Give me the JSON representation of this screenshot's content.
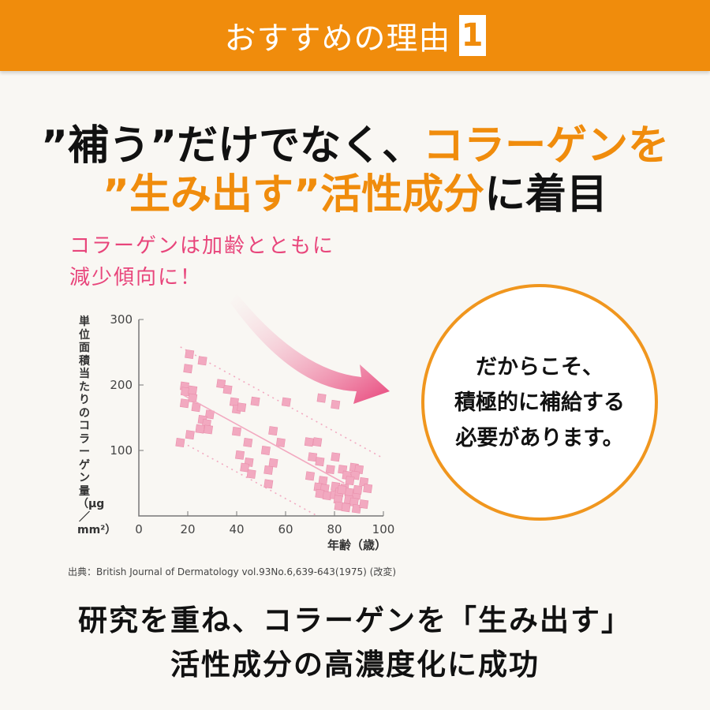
{
  "header": {
    "title": "おすすめの理由",
    "number": "1"
  },
  "headline": {
    "line1_black": "”補う”だけでなく、",
    "line1_orange": "コラーゲンを",
    "line2_orange": "”生み出す”活性成分",
    "line2_black": "に着目"
  },
  "note": {
    "line1": "コラーゲンは加齢とともに",
    "line2": "減少傾向に！"
  },
  "callout": {
    "line1": "だからこそ、",
    "line2": "積極的に補給する",
    "line3": "必要があります。"
  },
  "source": "出典：British Journal of Dermatology vol.93No.6,639-643(1975) (改変)",
  "bottom": {
    "line1": "研究を重ね、コラーゲンを「生み出す」",
    "line2": "活性成分の高濃度化に成功"
  },
  "colors": {
    "accent": "#f08c0c",
    "pink": "#e8457b",
    "point": "#f2a9c0"
  },
  "chart_data": {
    "type": "scatter",
    "xlabel": "年齢（歳）",
    "ylabel": "単位面積当たりのコラーゲン量（μg／mm²）",
    "xlim": [
      0,
      100
    ],
    "ylim": [
      0,
      300
    ],
    "xticks": [
      "0",
      "20",
      "40",
      "60",
      "80",
      "100"
    ],
    "yticks": [
      "100",
      "200",
      "300"
    ],
    "grid": false,
    "points": [
      [
        20.7,
        247
      ],
      [
        20.1,
        225
      ],
      [
        26,
        237
      ],
      [
        18.7,
        198
      ],
      [
        19,
        190
      ],
      [
        22,
        192
      ],
      [
        22,
        180
      ],
      [
        18.7,
        172
      ],
      [
        23.4,
        166
      ],
      [
        29,
        155
      ],
      [
        26,
        147
      ],
      [
        27.7,
        141
      ],
      [
        25,
        133
      ],
      [
        28.4,
        132
      ],
      [
        20.9,
        124
      ],
      [
        16.9,
        112
      ],
      [
        33.6,
        202
      ],
      [
        36.3,
        193
      ],
      [
        39,
        174
      ],
      [
        40,
        163
      ],
      [
        42,
        166
      ],
      [
        47.6,
        175
      ],
      [
        40,
        129
      ],
      [
        44.6,
        112
      ],
      [
        41.3,
        93
      ],
      [
        45,
        82
      ],
      [
        43.3,
        74
      ],
      [
        46,
        64
      ],
      [
        51.9,
        100
      ],
      [
        54.9,
        130
      ],
      [
        55,
        81
      ],
      [
        53,
        70
      ],
      [
        53,
        49
      ],
      [
        58,
        112
      ],
      [
        60.3,
        174
      ],
      [
        74.7,
        180
      ],
      [
        80.4,
        170
      ],
      [
        69.6,
        113
      ],
      [
        73,
        113
      ],
      [
        71,
        90
      ],
      [
        74,
        83
      ],
      [
        80.4,
        90
      ],
      [
        78.3,
        71
      ],
      [
        70,
        61
      ],
      [
        75.3,
        54
      ],
      [
        73.4,
        44
      ],
      [
        76,
        42
      ],
      [
        74,
        34
      ],
      [
        77,
        31
      ],
      [
        80,
        32
      ],
      [
        80.4,
        45
      ],
      [
        83.3,
        71
      ],
      [
        85,
        62
      ],
      [
        88,
        74
      ],
      [
        90,
        71
      ],
      [
        88.5,
        62
      ],
      [
        86.3,
        54
      ],
      [
        84,
        42
      ],
      [
        82,
        36
      ],
      [
        86,
        36
      ],
      [
        89,
        32
      ],
      [
        81.5,
        25
      ],
      [
        85.8,
        25
      ],
      [
        88,
        21
      ],
      [
        81.8,
        15
      ],
      [
        84.7,
        13
      ],
      [
        89,
        11
      ],
      [
        92,
        18
      ],
      [
        92,
        52
      ],
      [
        93.6,
        42
      ],
      [
        83,
        40
      ],
      [
        89.5,
        40
      ]
    ],
    "trend_line": [
      [
        18,
        185
      ],
      [
        84,
        50
      ]
    ],
    "upper_band": [
      [
        17,
        258
      ],
      [
        100,
        88
      ]
    ],
    "lower_band": [
      [
        18,
        112
      ],
      [
        73,
        0
      ]
    ]
  }
}
